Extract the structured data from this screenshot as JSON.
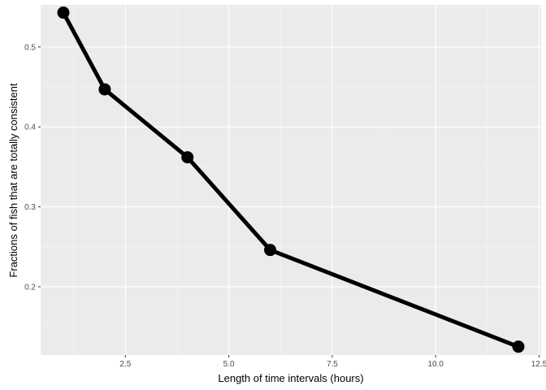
{
  "chart_data": {
    "type": "line",
    "title": "",
    "xlabel": "Length of time intervals (hours)",
    "ylabel": "Fractions of fish that are totally consistent",
    "xlim": [
      0.45,
      12.55
    ],
    "ylim": [
      0.1145,
      0.5527
    ],
    "x_ticks": [
      2.5,
      5.0,
      7.5,
      10.0,
      12.5
    ],
    "x_tick_labels": [
      "2.5",
      "5.0",
      "7.5",
      "10.0",
      "12.5"
    ],
    "y_ticks": [
      0.2,
      0.3,
      0.4,
      0.5
    ],
    "y_tick_labels": [
      "0.2",
      "0.3",
      "0.4",
      "0.5"
    ],
    "grid": true,
    "series": [
      {
        "x": [
          1,
          2,
          4,
          6,
          12
        ],
        "y": [
          0.543,
          0.447,
          0.362,
          0.246,
          0.125
        ]
      }
    ],
    "colors": {
      "panel": "#ebebeb",
      "grid_major": "#ffffff",
      "grid_minor": "#f5f5f5",
      "line": "#000000"
    }
  }
}
